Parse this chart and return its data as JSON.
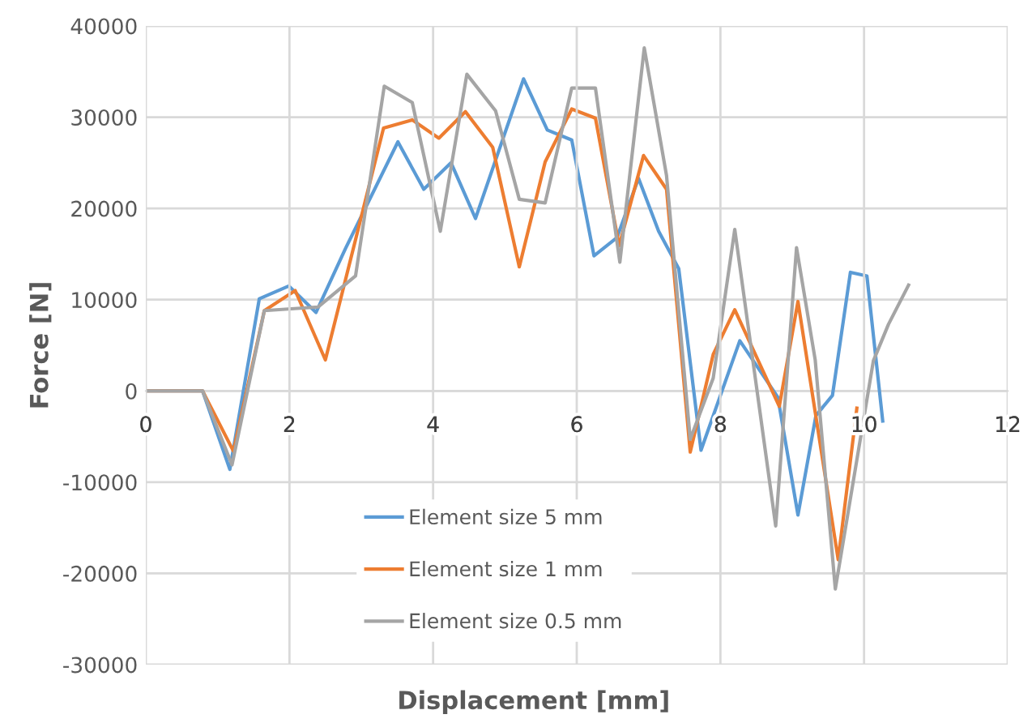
{
  "chart_data": {
    "type": "line",
    "xlabel": "Displacement [mm]",
    "ylabel": "Force [N]",
    "xlim": [
      0,
      12
    ],
    "ylim": [
      -30000,
      40000
    ],
    "xticks": [
      0,
      2,
      4,
      6,
      8,
      10,
      12
    ],
    "yticks": [
      -30000,
      -20000,
      -10000,
      0,
      10000,
      20000,
      30000,
      40000
    ],
    "grid": true,
    "legend": "bottom",
    "marker": "none",
    "line_style": "solid",
    "series": [
      {
        "name": "Element size 5 mm",
        "color": "#5b9bd5",
        "x": [
          0,
          0.79,
          1.17,
          1.58,
          1.99,
          2.37,
          2.78,
          3.51,
          3.87,
          4.25,
          4.59,
          5.26,
          5.59,
          5.93,
          6.24,
          6.56,
          6.86,
          7.14,
          7.42,
          7.73,
          8.27,
          8.8,
          9.08,
          9.33,
          9.56,
          9.81,
          10.04,
          10.26
        ],
        "values": [
          0,
          0,
          -8600,
          10100,
          11500,
          8600,
          15600,
          27300,
          22100,
          25000,
          18900,
          34200,
          28600,
          27500,
          14800,
          16800,
          23300,
          17500,
          13400,
          -6500,
          5500,
          -700,
          -13600,
          -2700,
          -500,
          13000,
          12600,
          -3300
        ]
      },
      {
        "name": "Element size 1 mm",
        "color": "#ed7d31",
        "x": [
          0,
          0.79,
          1.22,
          1.65,
          2.08,
          2.5,
          3.31,
          3.71,
          4.08,
          4.45,
          4.83,
          5.2,
          5.56,
          5.93,
          6.26,
          6.59,
          6.93,
          7.25,
          7.58,
          7.9,
          8.2,
          8.82,
          9.08,
          9.64,
          9.9
        ],
        "values": [
          0,
          0,
          -6600,
          8800,
          11000,
          3400,
          28800,
          29700,
          27700,
          30600,
          26700,
          13600,
          25100,
          30900,
          29900,
          15900,
          25800,
          22100,
          -6700,
          4000,
          8900,
          -1700,
          9800,
          -18500,
          -1900
        ]
      },
      {
        "name": "Element size 0.5 mm",
        "color": "#a5a5a5",
        "x": [
          0,
          0.79,
          1.2,
          1.65,
          2.4,
          2.92,
          3.32,
          3.71,
          4.1,
          4.47,
          4.87,
          5.2,
          5.56,
          5.93,
          6.26,
          6.6,
          6.94,
          7.25,
          7.58,
          7.9,
          8.2,
          8.77,
          9.06,
          9.32,
          9.6,
          10.13,
          10.34,
          10.62
        ],
        "values": [
          0,
          0,
          -8100,
          8800,
          9200,
          12600,
          33400,
          31600,
          17500,
          34700,
          30700,
          21000,
          20600,
          33200,
          33200,
          14100,
          37600,
          23600,
          -5300,
          1400,
          17700,
          -14800,
          15700,
          3400,
          -21700,
          3300,
          7300,
          11600
        ]
      }
    ]
  }
}
